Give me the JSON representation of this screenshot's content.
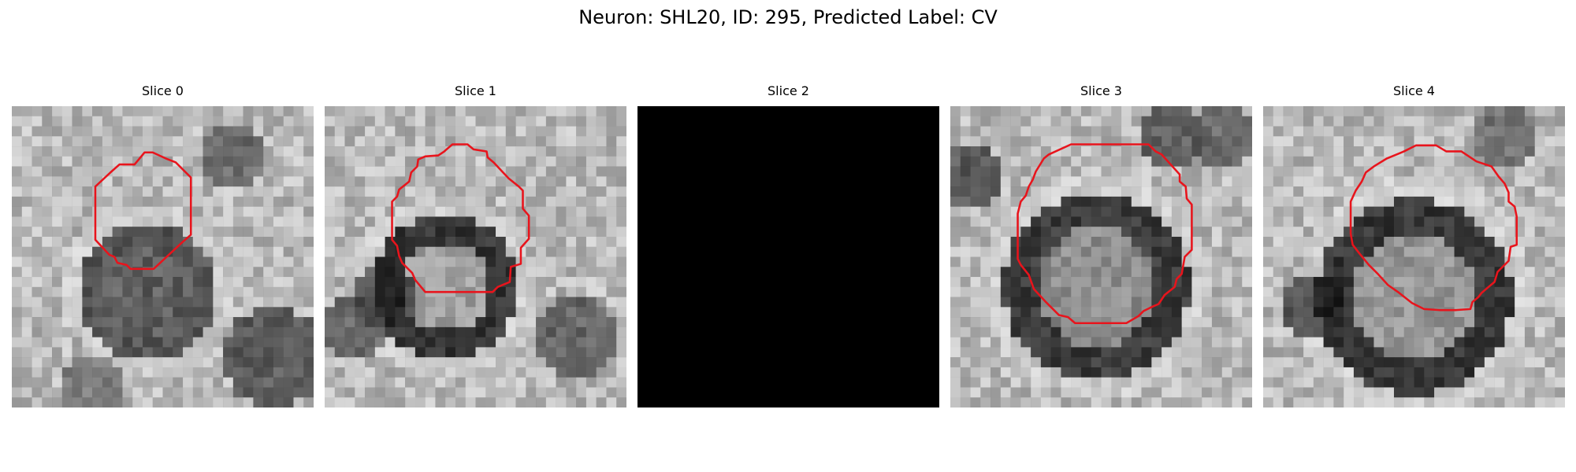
{
  "figure": {
    "title": "Neuron: SHL20, ID: 295, Predicted Label: CV"
  },
  "slices": [
    {
      "title": "Slice 0",
      "image": "grayscale-microscopy-crop",
      "contour_color": "#e8141c",
      "blank": false
    },
    {
      "title": "Slice 1",
      "image": "grayscale-microscopy-crop",
      "contour_color": "#e8141c",
      "blank": false
    },
    {
      "title": "Slice 2",
      "image": "black-empty-frame",
      "contour_color": "#e8141c",
      "blank": true
    },
    {
      "title": "Slice 3",
      "image": "grayscale-microscopy-crop",
      "contour_color": "#e8141c",
      "blank": false
    },
    {
      "title": "Slice 4",
      "image": "grayscale-microscopy-crop",
      "contour_color": "#e8141c",
      "blank": false
    }
  ]
}
